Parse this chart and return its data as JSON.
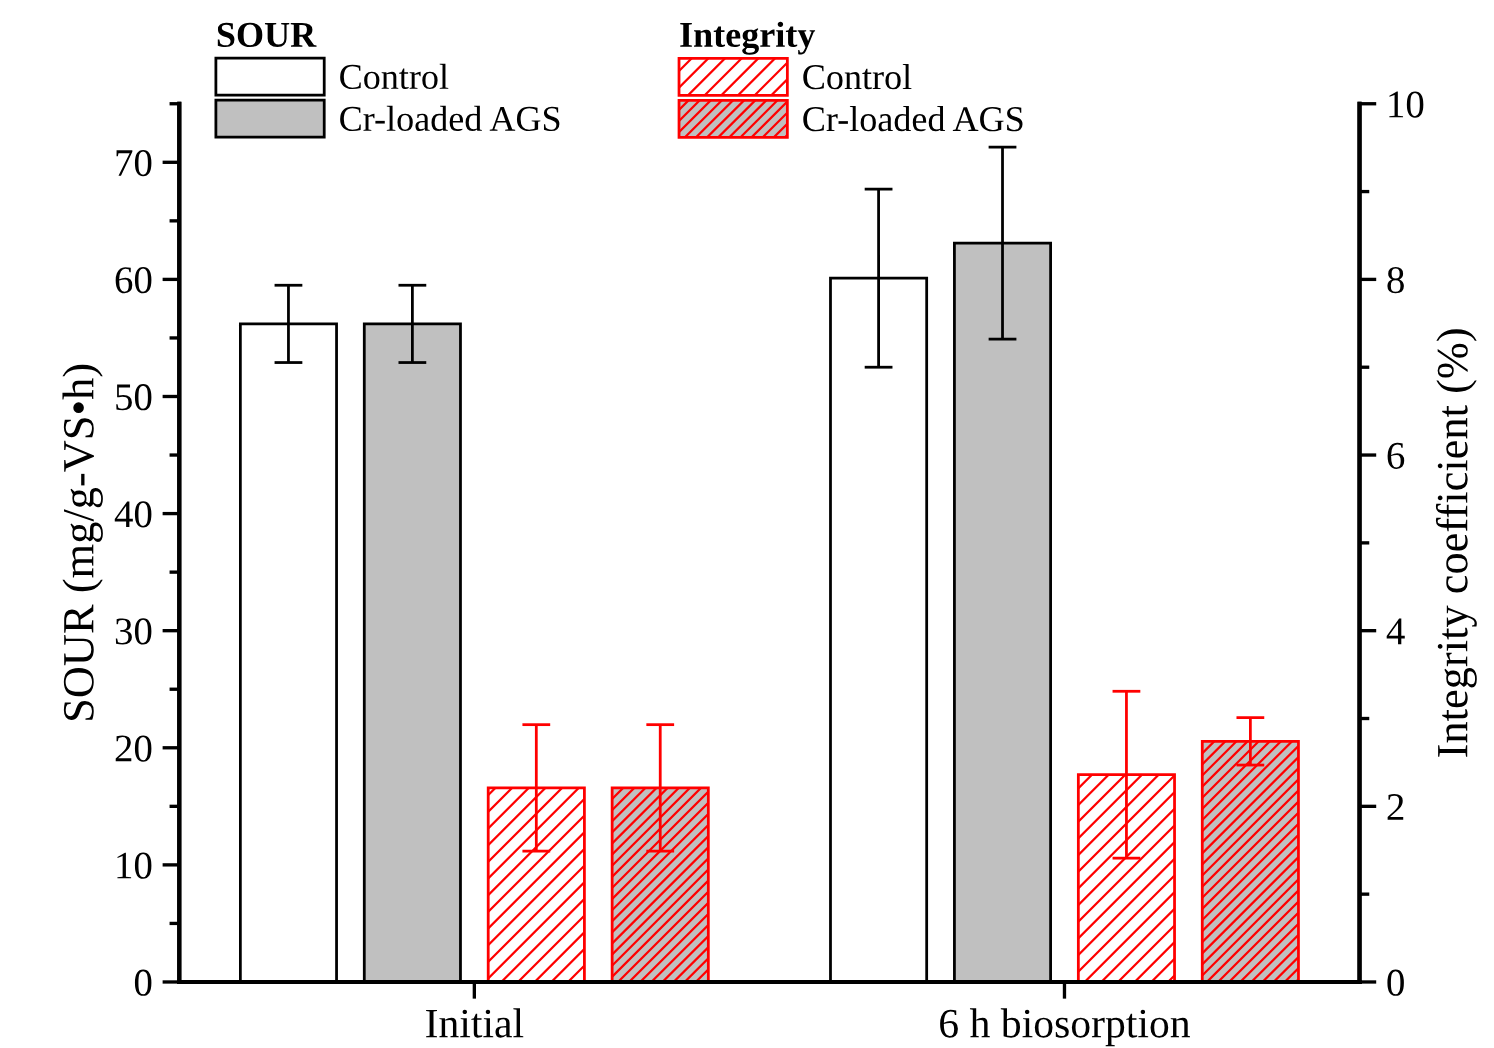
{
  "chart_data": {
    "type": "bar",
    "categories": [
      "Initial",
      "6 h biosorption"
    ],
    "ylabel": "SOUR (mg/g-VS•h)",
    "y2label": "Integrity coefficient (%)",
    "legend_title": [
      "SOUR",
      "Integrity"
    ],
    "series": [
      {
        "name": "Control",
        "color": "#ffffff",
        "values": [
          56.2,
          60.1
        ],
        "errors": [
          3.3,
          7.6
        ]
      },
      {
        "name": "Cr-loaded AGS",
        "color": "#c0c0c0",
        "values": [
          56.2,
          63.1
        ],
        "errors": [
          3.3,
          8.2
        ]
      },
      {
        "name": "Control",
        "color": "#ff0000",
        "axis": "y2",
        "values": [
          2.21,
          2.36
        ],
        "errors": [
          0.72,
          0.95
        ]
      },
      {
        "name": "Cr-loaded AGS",
        "color": "#ff0000",
        "axis": "y2",
        "values": [
          2.21,
          2.74
        ],
        "errors": [
          0.72,
          0.27
        ]
      }
    ],
    "ylim": [
      0,
      75
    ],
    "yticks": [
      0,
      10,
      20,
      30,
      40,
      50,
      60,
      70
    ],
    "y2lim": [
      0,
      10
    ],
    "y2ticks": [
      0,
      2,
      4,
      6,
      8,
      10
    ],
    "grid": false,
    "legend": "top"
  }
}
